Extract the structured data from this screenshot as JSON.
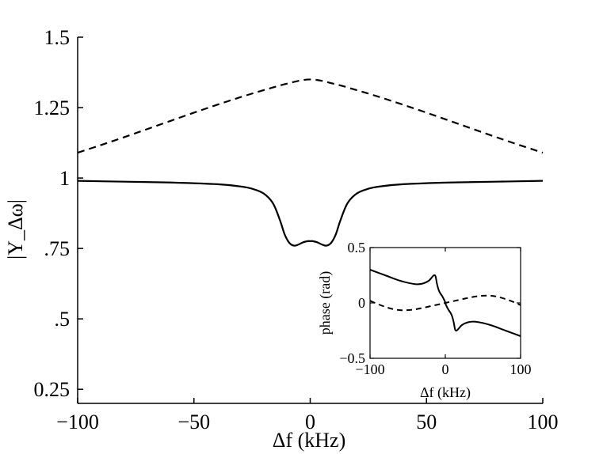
{
  "chart_data": [
    {
      "type": "line",
      "panel": "main",
      "xlabel": "Δf (kHz)",
      "ylabel": "|Y_Δω|",
      "xlim": [
        -100,
        100
      ],
      "ylim": [
        0.2,
        1.5
      ],
      "x_ticks": [
        -100,
        -50,
        0,
        50,
        100
      ],
      "x_tick_labels": [
        "−100",
        "−50",
        "0",
        "50",
        "100"
      ],
      "y_ticks": [
        0.25,
        0.5,
        0.75,
        1.0,
        1.25,
        1.5
      ],
      "y_tick_labels": [
        "0.25",
        ".5",
        ".75",
        "1",
        "1.25",
        "1.5"
      ],
      "grid": false,
      "legend": "none",
      "series": [
        {
          "style": "dashed",
          "x": [
            -100,
            -90,
            -80,
            -70,
            -60,
            -50,
            -40,
            -30,
            -20,
            -10,
            0,
            10,
            20,
            30,
            40,
            50,
            60,
            70,
            80,
            90,
            100
          ],
          "values": [
            1.09,
            1.117,
            1.145,
            1.174,
            1.203,
            1.232,
            1.26,
            1.287,
            1.312,
            1.335,
            1.35,
            1.335,
            1.312,
            1.287,
            1.26,
            1.232,
            1.203,
            1.174,
            1.145,
            1.117,
            1.09
          ]
        },
        {
          "style": "solid",
          "x": [
            -100,
            -80,
            -60,
            -40,
            -30,
            -25,
            -20,
            -16,
            -13,
            -11,
            -9,
            -7,
            -5,
            -3,
            -1,
            0,
            1,
            3,
            5,
            7,
            9,
            11,
            13,
            16,
            20,
            25,
            30,
            40,
            60,
            80,
            100
          ],
          "values": [
            0.99,
            0.987,
            0.984,
            0.978,
            0.97,
            0.962,
            0.945,
            0.91,
            0.85,
            0.8,
            0.77,
            0.76,
            0.764,
            0.772,
            0.776,
            0.776,
            0.776,
            0.772,
            0.764,
            0.76,
            0.77,
            0.8,
            0.85,
            0.91,
            0.945,
            0.962,
            0.97,
            0.978,
            0.984,
            0.987,
            0.99
          ]
        }
      ]
    },
    {
      "type": "line",
      "panel": "inset",
      "xlabel": "Δf (kHz)",
      "ylabel": "phase (rad)",
      "xlim": [
        -100,
        100
      ],
      "ylim": [
        -0.5,
        0.5
      ],
      "x_ticks": [
        -100,
        0,
        100
      ],
      "x_tick_labels": [
        "−100",
        "0",
        "100"
      ],
      "y_ticks": [
        -0.5,
        0,
        0.5
      ],
      "y_tick_labels": [
        "−0.5",
        "0",
        "0.5"
      ],
      "grid": false,
      "legend": "none",
      "series": [
        {
          "style": "solid",
          "x": [
            -100,
            -80,
            -60,
            -40,
            -30,
            -22,
            -18,
            -15,
            -13,
            -11,
            -9,
            -7,
            -4,
            -1,
            0,
            1,
            4,
            7,
            9,
            11,
            13,
            15,
            18,
            22,
            30,
            40,
            60,
            80,
            100
          ],
          "values": [
            0.3,
            0.25,
            0.2,
            0.17,
            0.175,
            0.2,
            0.23,
            0.25,
            0.24,
            0.17,
            0.12,
            0.09,
            0.06,
            0.02,
            0.0,
            -0.02,
            -0.06,
            -0.09,
            -0.12,
            -0.17,
            -0.24,
            -0.25,
            -0.23,
            -0.2,
            -0.175,
            -0.17,
            -0.2,
            -0.25,
            -0.3
          ]
        },
        {
          "style": "dashed",
          "x": [
            -100,
            -90,
            -80,
            -70,
            -60,
            -50,
            -40,
            -30,
            -20,
            -10,
            0,
            10,
            20,
            30,
            40,
            50,
            60,
            70,
            80,
            90,
            100
          ],
          "values": [
            0.02,
            -0.01,
            -0.035,
            -0.055,
            -0.065,
            -0.065,
            -0.058,
            -0.045,
            -0.03,
            -0.015,
            0.0,
            0.015,
            0.03,
            0.045,
            0.058,
            0.065,
            0.065,
            0.055,
            0.035,
            0.01,
            -0.02
          ]
        }
      ]
    }
  ]
}
